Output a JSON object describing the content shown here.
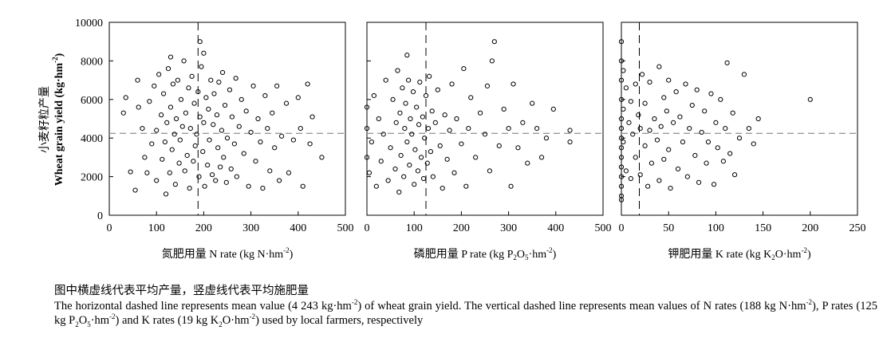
{
  "colors": {
    "axis": "#000000",
    "point": "#000000",
    "mean_line": "#9a9a9a",
    "rate_line": "#000000"
  },
  "chart_data": [
    {
      "type": "scatter",
      "panel": "n",
      "xlabel_cn": "氮肥用量",
      "xlabel_en": "N rate (kg N·hm",
      "xlabel_sup": "-2",
      "xlabel_close": ")",
      "ylabel_cn": "小麦籽粒产量",
      "ylabel_en": "Wheat grain yield (kg·hm",
      "ylabel_sup": "-2",
      "ylabel_close": ")",
      "xlim": [
        0,
        500
      ],
      "ylim": [
        0,
        10000
      ],
      "xticks": [
        0,
        100,
        200,
        300,
        400,
        500
      ],
      "yticks": [
        0,
        2000,
        4000,
        6000,
        8000,
        10000
      ],
      "hline": 4243,
      "vline": 188,
      "grid": false,
      "points": [
        [
          30,
          5300
        ],
        [
          35,
          6100
        ],
        [
          45,
          2250
        ],
        [
          55,
          1300
        ],
        [
          60,
          7000
        ],
        [
          62,
          5600
        ],
        [
          70,
          4500
        ],
        [
          75,
          3000
        ],
        [
          80,
          2200
        ],
        [
          85,
          5900
        ],
        [
          90,
          3700
        ],
        [
          95,
          6700
        ],
        [
          100,
          4400
        ],
        [
          100,
          1800
        ],
        [
          105,
          7300
        ],
        [
          110,
          5200
        ],
        [
          112,
          2900
        ],
        [
          115,
          6300
        ],
        [
          118,
          3800
        ],
        [
          120,
          1100
        ],
        [
          122,
          4800
        ],
        [
          125,
          7600
        ],
        [
          128,
          2200
        ],
        [
          130,
          5600
        ],
        [
          130,
          8200
        ],
        [
          133,
          3400
        ],
        [
          135,
          6800
        ],
        [
          138,
          4200
        ],
        [
          140,
          1600
        ],
        [
          142,
          5000
        ],
        [
          145,
          7000
        ],
        [
          148,
          2700
        ],
        [
          150,
          3900
        ],
        [
          152,
          6000
        ],
        [
          155,
          4600
        ],
        [
          158,
          8000
        ],
        [
          160,
          2300
        ],
        [
          162,
          5300
        ],
        [
          165,
          3100
        ],
        [
          168,
          6600
        ],
        [
          170,
          1400
        ],
        [
          172,
          4500
        ],
        [
          175,
          7200
        ],
        [
          178,
          2800
        ],
        [
          180,
          5800
        ],
        [
          182,
          3600
        ],
        [
          185,
          4200
        ],
        [
          188,
          6400
        ],
        [
          190,
          2000
        ],
        [
          192,
          5100
        ],
        [
          195,
          7700
        ],
        [
          198,
          3300
        ],
        [
          200,
          4800
        ],
        [
          202,
          1500
        ],
        [
          205,
          6100
        ],
        [
          208,
          2600
        ],
        [
          210,
          5500
        ],
        [
          212,
          3900
        ],
        [
          215,
          7000
        ],
        [
          218,
          2100
        ],
        [
          220,
          4700
        ],
        [
          222,
          6300
        ],
        [
          225,
          1800
        ],
        [
          228,
          5200
        ],
        [
          230,
          3500
        ],
        [
          232,
          6900
        ],
        [
          235,
          2500
        ],
        [
          238,
          4400
        ],
        [
          240,
          7400
        ],
        [
          242,
          3000
        ],
        [
          245,
          5700
        ],
        [
          248,
          1700
        ],
        [
          250,
          4000
        ],
        [
          255,
          6500
        ],
        [
          258,
          2400
        ],
        [
          260,
          5100
        ],
        [
          265,
          3700
        ],
        [
          268,
          7100
        ],
        [
          270,
          2000
        ],
        [
          275,
          4600
        ],
        [
          280,
          6000
        ],
        [
          285,
          3200
        ],
        [
          290,
          5400
        ],
        [
          295,
          1500
        ],
        [
          300,
          4300
        ],
        [
          305,
          6700
        ],
        [
          310,
          2800
        ],
        [
          315,
          5000
        ],
        [
          320,
          3800
        ],
        [
          325,
          1400
        ],
        [
          330,
          6200
        ],
        [
          335,
          4500
        ],
        [
          340,
          2300
        ],
        [
          345,
          5300
        ],
        [
          350,
          3500
        ],
        [
          355,
          6700
        ],
        [
          360,
          1800
        ],
        [
          365,
          4100
        ],
        [
          375,
          5800
        ],
        [
          380,
          2200
        ],
        [
          390,
          3900
        ],
        [
          400,
          6100
        ],
        [
          405,
          4500
        ],
        [
          410,
          1500
        ],
        [
          420,
          6800
        ],
        [
          425,
          3700
        ],
        [
          430,
          5100
        ],
        [
          450,
          3000
        ],
        [
          192,
          9000
        ],
        [
          200,
          8400
        ]
      ]
    },
    {
      "type": "scatter",
      "panel": "p",
      "xlabel_cn": "磷肥用量",
      "xlabel_en": "P rate (kg P",
      "xlabel_sub1": "2",
      "xlabel_mid": "O",
      "xlabel_sub2": "5",
      "xlabel_tail": "·hm",
      "xlabel_sup": "-2",
      "xlabel_close": ")",
      "xlim": [
        0,
        500
      ],
      "ylim": [
        0,
        10000
      ],
      "xticks": [
        0,
        100,
        200,
        300,
        400,
        500
      ],
      "yticks": [
        0,
        2000,
        4000,
        6000,
        8000,
        10000
      ],
      "hline": 4243,
      "vline": 125,
      "grid": false,
      "points": [
        [
          0,
          4500
        ],
        [
          0,
          3000
        ],
        [
          0,
          5600
        ],
        [
          5,
          2200
        ],
        [
          10,
          3800
        ],
        [
          15,
          6200
        ],
        [
          20,
          1500
        ],
        [
          25,
          5000
        ],
        [
          30,
          2800
        ],
        [
          35,
          4200
        ],
        [
          40,
          7000
        ],
        [
          45,
          1800
        ],
        [
          50,
          3500
        ],
        [
          55,
          6000
        ],
        [
          60,
          2400
        ],
        [
          62,
          4800
        ],
        [
          65,
          7500
        ],
        [
          68,
          1200
        ],
        [
          70,
          5300
        ],
        [
          72,
          3100
        ],
        [
          75,
          6600
        ],
        [
          78,
          2000
        ],
        [
          80,
          4500
        ],
        [
          82,
          5800
        ],
        [
          85,
          3800
        ],
        [
          88,
          7000
        ],
        [
          90,
          2600
        ],
        [
          92,
          5000
        ],
        [
          95,
          4200
        ],
        [
          98,
          6400
        ],
        [
          100,
          1600
        ],
        [
          102,
          3400
        ],
        [
          105,
          5600
        ],
        [
          108,
          2300
        ],
        [
          110,
          4700
        ],
        [
          112,
          6900
        ],
        [
          115,
          3000
        ],
        [
          118,
          5100
        ],
        [
          120,
          1900
        ],
        [
          122,
          4000
        ],
        [
          125,
          6200
        ],
        [
          128,
          2700
        ],
        [
          130,
          4500
        ],
        [
          132,
          7200
        ],
        [
          135,
          3300
        ],
        [
          138,
          5400
        ],
        [
          140,
          2000
        ],
        [
          145,
          4800
        ],
        [
          150,
          6500
        ],
        [
          155,
          3600
        ],
        [
          160,
          1400
        ],
        [
          165,
          5200
        ],
        [
          170,
          2900
        ],
        [
          175,
          4400
        ],
        [
          180,
          6800
        ],
        [
          185,
          2200
        ],
        [
          190,
          5000
        ],
        [
          200,
          3700
        ],
        [
          205,
          7600
        ],
        [
          210,
          1500
        ],
        [
          215,
          4500
        ],
        [
          220,
          6100
        ],
        [
          230,
          3000
        ],
        [
          240,
          5300
        ],
        [
          250,
          4200
        ],
        [
          255,
          6700
        ],
        [
          260,
          2300
        ],
        [
          265,
          8000
        ],
        [
          270,
          9000
        ],
        [
          280,
          3600
        ],
        [
          290,
          5500
        ],
        [
          300,
          4500
        ],
        [
          305,
          1500
        ],
        [
          310,
          6800
        ],
        [
          320,
          3500
        ],
        [
          330,
          4800
        ],
        [
          340,
          2700
        ],
        [
          350,
          5800
        ],
        [
          360,
          4500
        ],
        [
          370,
          3000
        ],
        [
          380,
          4000
        ],
        [
          395,
          5500
        ],
        [
          430,
          4400
        ],
        [
          430,
          3800
        ],
        [
          85,
          8300
        ]
      ]
    },
    {
      "type": "scatter",
      "panel": "k",
      "xlabel_cn": "钾肥用量",
      "xlabel_en": "K rate (kg K",
      "xlabel_sub1": "2",
      "xlabel_tail": "O·hm",
      "xlabel_sup": "-2",
      "xlabel_close": ")",
      "xlim": [
        0,
        250
      ],
      "ylim": [
        0,
        10000
      ],
      "xticks": [
        0,
        50,
        100,
        150,
        200,
        250
      ],
      "yticks": [
        0,
        2000,
        4000,
        6000,
        8000,
        10000
      ],
      "hline": 4243,
      "vline": 19,
      "grid": false,
      "points": [
        [
          0,
          9000
        ],
        [
          0,
          8000
        ],
        [
          0,
          7000
        ],
        [
          0,
          6000
        ],
        [
          0,
          5000
        ],
        [
          0,
          4500
        ],
        [
          0,
          4000
        ],
        [
          0,
          3500
        ],
        [
          0,
          3000
        ],
        [
          0,
          2500
        ],
        [
          0,
          2000
        ],
        [
          0,
          1500
        ],
        [
          0,
          1000
        ],
        [
          0,
          800
        ],
        [
          2,
          7500
        ],
        [
          2,
          5500
        ],
        [
          2,
          3800
        ],
        [
          5,
          6600
        ],
        [
          5,
          2300
        ],
        [
          8,
          4800
        ],
        [
          10,
          5900
        ],
        [
          10,
          1900
        ],
        [
          12,
          4200
        ],
        [
          15,
          6800
        ],
        [
          15,
          3000
        ],
        [
          18,
          5200
        ],
        [
          20,
          2100
        ],
        [
          20,
          4500
        ],
        [
          22,
          7300
        ],
        [
          25,
          3600
        ],
        [
          25,
          5800
        ],
        [
          28,
          1500
        ],
        [
          30,
          4400
        ],
        [
          30,
          6900
        ],
        [
          32,
          2700
        ],
        [
          35,
          5000
        ],
        [
          38,
          3900
        ],
        [
          40,
          7700
        ],
        [
          40,
          1800
        ],
        [
          42,
          4600
        ],
        [
          45,
          6100
        ],
        [
          45,
          2900
        ],
        [
          48,
          5400
        ],
        [
          50,
          3400
        ],
        [
          50,
          7000
        ],
        [
          52,
          1400
        ],
        [
          55,
          4800
        ],
        [
          58,
          6400
        ],
        [
          60,
          2400
        ],
        [
          62,
          5100
        ],
        [
          65,
          3800
        ],
        [
          68,
          6800
        ],
        [
          70,
          2000
        ],
        [
          72,
          4500
        ],
        [
          75,
          5700
        ],
        [
          78,
          3100
        ],
        [
          80,
          6500
        ],
        [
          82,
          1700
        ],
        [
          85,
          4300
        ],
        [
          88,
          5400
        ],
        [
          90,
          2700
        ],
        [
          92,
          3800
        ],
        [
          95,
          6300
        ],
        [
          98,
          1600
        ],
        [
          100,
          4800
        ],
        [
          102,
          3500
        ],
        [
          105,
          6000
        ],
        [
          108,
          2800
        ],
        [
          110,
          4500
        ],
        [
          112,
          7900
        ],
        [
          115,
          3200
        ],
        [
          118,
          5300
        ],
        [
          120,
          2100
        ],
        [
          125,
          4000
        ],
        [
          130,
          7300
        ],
        [
          135,
          4500
        ],
        [
          140,
          3700
        ],
        [
          145,
          5000
        ],
        [
          200,
          6000
        ]
      ]
    }
  ],
  "caption": {
    "cn": "图中横虚线代表平均产量，竖虚线代表平均施肥量",
    "en_1": "The horizontal dashed line represents mean value (4 243 kg·hm",
    "en_1_sup": "-2",
    "en_2": ") of wheat grain yield. The vertical dashed line represents mean values of N rates (188 kg N·hm",
    "en_2_sup": "-2",
    "en_3": "), P rates (125 kg P",
    "en_3_sub1": "2",
    "en_3_mid": "O",
    "en_3_sub2": "5",
    "en_3_tail": "·hm",
    "en_3_sup": "-2",
    "en_4": ") and K rates (19 kg K",
    "en_4_sub": "2",
    "en_4_tail": "O·hm",
    "en_4_sup": "-2",
    "en_5": ") used by local farmers, respectively"
  }
}
